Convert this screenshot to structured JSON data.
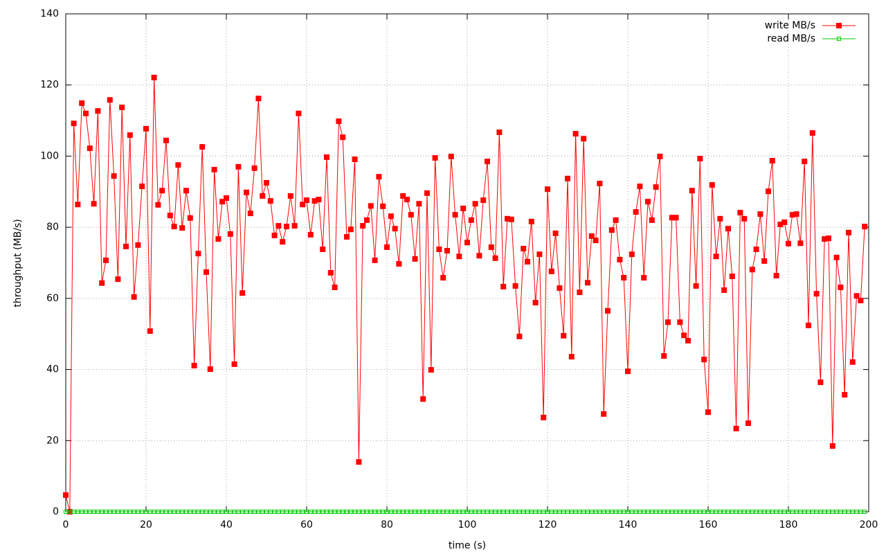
{
  "chart_data": {
    "type": "line",
    "xlabel": "time (s)",
    "ylabel": "throughput (MB/s)",
    "xlim": [
      0,
      200
    ],
    "xticks": [
      0,
      20,
      40,
      60,
      80,
      100,
      120,
      140,
      160,
      180,
      200
    ],
    "ylim": [
      0,
      140
    ],
    "yticks": [
      0,
      20,
      40,
      60,
      80,
      100,
      120,
      140
    ],
    "grid": true,
    "legend": "top-right",
    "x": [
      0,
      1,
      2,
      3,
      4,
      5,
      6,
      7,
      8,
      9,
      10,
      11,
      12,
      13,
      14,
      15,
      16,
      17,
      18,
      19,
      20,
      21,
      22,
      23,
      24,
      25,
      26,
      27,
      28,
      29,
      30,
      31,
      32,
      33,
      34,
      35,
      36,
      37,
      38,
      39,
      40,
      41,
      42,
      43,
      44,
      45,
      46,
      47,
      48,
      49,
      50,
      51,
      52,
      53,
      54,
      55,
      56,
      57,
      58,
      59,
      60,
      61,
      62,
      63,
      64,
      65,
      66,
      67,
      68,
      69,
      70,
      71,
      72,
      73,
      74,
      75,
      76,
      77,
      78,
      79,
      80,
      81,
      82,
      83,
      84,
      85,
      86,
      87,
      88,
      89,
      90,
      91,
      92,
      93,
      94,
      95,
      96,
      97,
      98,
      99,
      100,
      101,
      102,
      103,
      104,
      105,
      106,
      107,
      108,
      109,
      110,
      111,
      112,
      113,
      114,
      115,
      116,
      117,
      118,
      119,
      120,
      121,
      122,
      123,
      124,
      125,
      126,
      127,
      128,
      129,
      130,
      131,
      132,
      133,
      134,
      135,
      136,
      137,
      138,
      139,
      140,
      141,
      142,
      143,
      144,
      145,
      146,
      147,
      148,
      149,
      150,
      151,
      152,
      153,
      154,
      155,
      156,
      157,
      158,
      159,
      160,
      161,
      162,
      163,
      164,
      165,
      166,
      167,
      168,
      169,
      170,
      171,
      172,
      173,
      174,
      175,
      176,
      177,
      178,
      179,
      180,
      181,
      182,
      183,
      184,
      185,
      186,
      187,
      188,
      189,
      190,
      191,
      192,
      193,
      194,
      195,
      196,
      197,
      198,
      199
    ],
    "series": [
      {
        "name": "write MB/s",
        "color": "#ff0000",
        "marker": "filled-square",
        "values": [
          4.7,
          0,
          109.2,
          86.4,
          114.9,
          112,
          102.2,
          86.6,
          112.7,
          64.3,
          70.7,
          115.8,
          94.4,
          65.4,
          113.7,
          74.6,
          105.9,
          60.4,
          75,
          91.5,
          107.7,
          50.8,
          122.1,
          86.3,
          90.3,
          104.4,
          83.3,
          80.2,
          97.5,
          79.8,
          90.3,
          82.6,
          41.1,
          72.6,
          102.6,
          67.4,
          40.1,
          96.2,
          76.7,
          87.2,
          88.2,
          78.1,
          41.5,
          97,
          61.5,
          89.8,
          83.9,
          96.6,
          116.2,
          88.8,
          92.5,
          87.4,
          77.7,
          80.4,
          75.9,
          80.2,
          88.8,
          80.4,
          112,
          86.4,
          87.6,
          77.9,
          87.4,
          87.8,
          73.8,
          99.7,
          67.2,
          63.1,
          109.8,
          105.3,
          77.3,
          79.4,
          99.1,
          14,
          80.4,
          82,
          86,
          70.7,
          94.2,
          85.9,
          74.4,
          83.1,
          79.6,
          69.7,
          88.8,
          87.8,
          83.5,
          71.1,
          86.6,
          31.7,
          89.6,
          39.9,
          99.5,
          73.8,
          65.8,
          73.4,
          99.9,
          83.5,
          71.8,
          85.3,
          75.7,
          82,
          86.6,
          72,
          87.6,
          98.5,
          74.4,
          71.3,
          106.7,
          63.3,
          82.4,
          82.2,
          63.5,
          49.3,
          74,
          70.3,
          81.6,
          58.8,
          72.4,
          26.5,
          90.7,
          67.6,
          78.3,
          62.9,
          49.5,
          93.7,
          43.6,
          106.3,
          61.7,
          104.9,
          64.4,
          77.5,
          76.3,
          92.3,
          27.5,
          56.5,
          79.2,
          82,
          70.9,
          65.8,
          39.5,
          72.4,
          84.3,
          91.5,
          65.8,
          87.2,
          82,
          91.3,
          99.9,
          43.8,
          53.3,
          82.7,
          82.7,
          53.3,
          49.6,
          48.1,
          90.3,
          63.5,
          99.3,
          42.8,
          28,
          91.9,
          71.8,
          82.4,
          62.3,
          79.6,
          66.2,
          23.4,
          84.1,
          82.4,
          24.9,
          68.1,
          73.8,
          83.7,
          70.5,
          90.1,
          98.7,
          66.4,
          80.8,
          81.4,
          75.4,
          83.5,
          83.7,
          75.5,
          98.5,
          52.4,
          106.5,
          61.3,
          36.4,
          76.7,
          76.9,
          18.5,
          71.5,
          63.1,
          32.9,
          78.5,
          42.1,
          60.7,
          59.4,
          80.2
        ]
      },
      {
        "name": "read MB/s",
        "color": "#00cc00",
        "marker": "open-square",
        "values": [
          0,
          0,
          0,
          0,
          0,
          0,
          0,
          0,
          0,
          0,
          0,
          0,
          0,
          0,
          0,
          0,
          0,
          0,
          0,
          0,
          0,
          0,
          0,
          0,
          0,
          0,
          0,
          0,
          0,
          0,
          0,
          0,
          0,
          0,
          0,
          0,
          0,
          0,
          0,
          0,
          0,
          0,
          0,
          0,
          0,
          0,
          0,
          0,
          0,
          0,
          0,
          0,
          0,
          0,
          0,
          0,
          0,
          0,
          0,
          0,
          0,
          0,
          0,
          0,
          0,
          0,
          0,
          0,
          0,
          0,
          0,
          0,
          0,
          0,
          0,
          0,
          0,
          0,
          0,
          0,
          0,
          0,
          0,
          0,
          0,
          0,
          0,
          0,
          0,
          0,
          0,
          0,
          0,
          0,
          0,
          0,
          0,
          0,
          0,
          0,
          0,
          0,
          0,
          0,
          0,
          0,
          0,
          0,
          0,
          0,
          0,
          0,
          0,
          0,
          0,
          0,
          0,
          0,
          0,
          0,
          0,
          0,
          0,
          0,
          0,
          0,
          0,
          0,
          0,
          0,
          0,
          0,
          0,
          0,
          0,
          0,
          0,
          0,
          0,
          0,
          0,
          0,
          0,
          0,
          0,
          0,
          0,
          0,
          0,
          0,
          0,
          0,
          0,
          0,
          0,
          0,
          0,
          0,
          0,
          0,
          0,
          0,
          0,
          0,
          0,
          0,
          0,
          0,
          0,
          0,
          0,
          0,
          0,
          0,
          0,
          0,
          0,
          0,
          0,
          0,
          0,
          0,
          0,
          0,
          0,
          0,
          0,
          0,
          0,
          0,
          0,
          0,
          0,
          0,
          0,
          0,
          0,
          0,
          0,
          0
        ]
      }
    ]
  }
}
